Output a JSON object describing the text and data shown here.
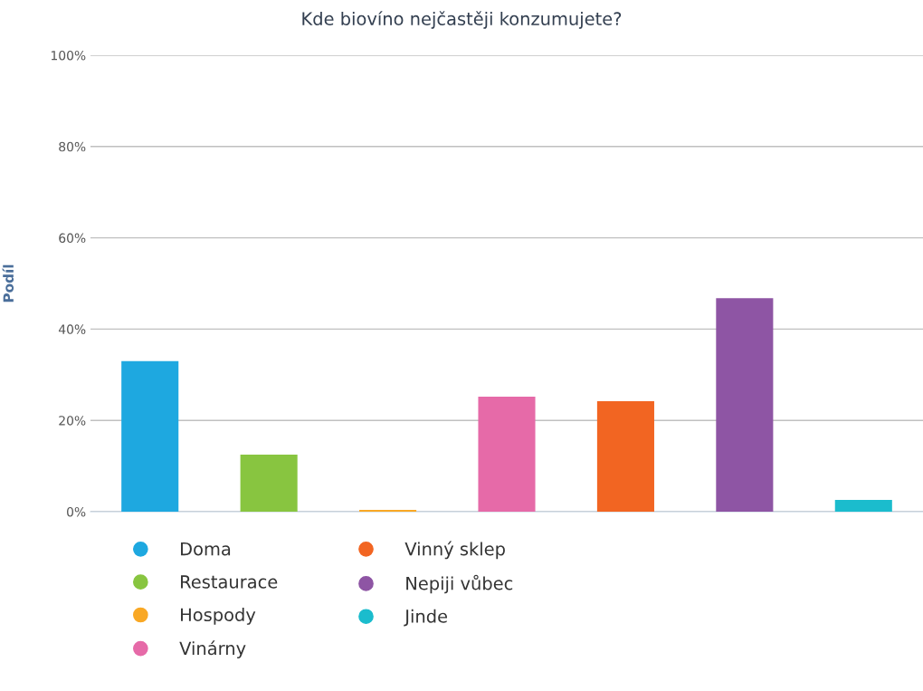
{
  "chart_data": {
    "type": "bar",
    "title": "Kde biovíno nejčastěji konzumujete?",
    "ylabel": "Podíl",
    "categories": [
      null,
      null,
      null,
      null,
      null,
      null,
      null
    ],
    "series": [
      {
        "name": "Doma",
        "color": "#1ea8e0",
        "values": [
          33,
          null,
          null,
          null,
          null,
          null,
          null
        ]
      },
      {
        "name": "Restaurace",
        "color": "#88c540",
        "values": [
          null,
          12.5,
          null,
          null,
          null,
          null,
          null
        ]
      },
      {
        "name": "Hospody",
        "color": "#f9a825",
        "values": [
          null,
          null,
          0.4,
          null,
          null,
          null,
          null
        ]
      },
      {
        "name": "Vinárny",
        "color": "#e66aa8",
        "values": [
          null,
          null,
          null,
          25.2,
          null,
          null,
          null
        ]
      },
      {
        "name": "Vinný sklep",
        "color": "#f26522",
        "values": [
          null,
          null,
          null,
          null,
          24.2,
          null,
          null
        ]
      },
      {
        "name": "Nepiji vůbec",
        "color": "#8e55a4",
        "values": [
          null,
          null,
          null,
          null,
          null,
          46.8,
          null
        ]
      },
      {
        "name": "Jinde",
        "color": "#1bbccd",
        "values": [
          null,
          null,
          null,
          null,
          null,
          null,
          2.6
        ]
      }
    ],
    "ylim": [
      0,
      100
    ],
    "yticks": [
      {
        "value": 0,
        "label": "0%"
      },
      {
        "value": 20,
        "label": "20%"
      },
      {
        "value": 40,
        "label": "40%"
      },
      {
        "value": 60,
        "label": "60%"
      },
      {
        "value": 80,
        "label": "80%"
      },
      {
        "value": 100,
        "label": "100%"
      }
    ],
    "grid": "y",
    "legend": "bottom"
  }
}
